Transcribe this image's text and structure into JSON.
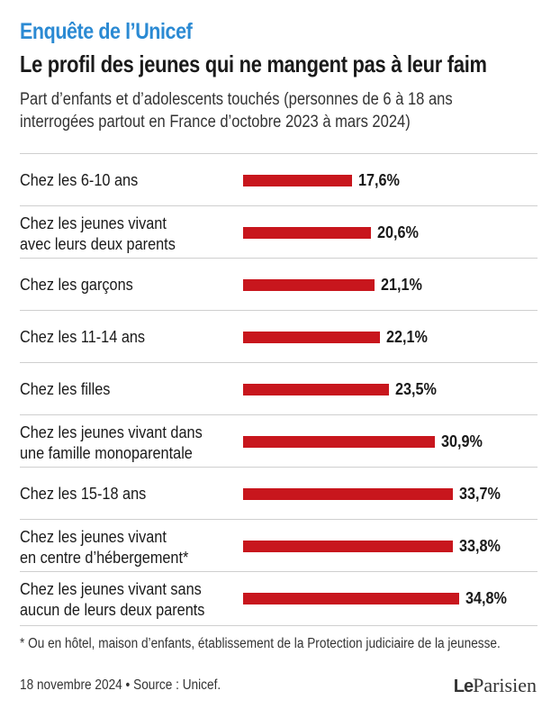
{
  "header": {
    "kicker": "Enquête de l’Unicef",
    "title": "Le profil des jeunes qui ne mangent pas à leur faim",
    "subtitle": "Part d’enfants et d’adolescents touchés (personnes de 6 à 18 ans interrogées partout en France d’octobre 2023 à mars 2024)"
  },
  "colors": {
    "kicker": "#2b8ad3",
    "bar": "#c8161d",
    "rule": "#cfcfcf"
  },
  "chart_data": {
    "type": "bar",
    "orientation": "horizontal",
    "categories": [
      "Chez les 6-10 ans",
      "Chez les jeunes vivant\navec leurs deux parents",
      "Chez les garçons",
      "Chez les 11-14 ans",
      "Chez les filles",
      "Chez les jeunes vivant dans\nune famille monoparentale",
      "Chez les 15-18 ans",
      "Chez les jeunes vivant\nen centre d’hébergement*",
      "Chez les jeunes vivant sans\naucun de leurs deux parents"
    ],
    "values": [
      17.6,
      20.6,
      21.1,
      22.1,
      23.5,
      30.9,
      33.7,
      33.8,
      34.8
    ],
    "value_labels": [
      "17,6%",
      "20,6%",
      "21,1%",
      "22,1%",
      "23,5%",
      "30,9%",
      "33,7%",
      "33,8%",
      "34,8%"
    ],
    "unit": "%",
    "grid": false,
    "legend": "none"
  },
  "footer": {
    "footnote": "* Ou en hôtel, maison d’enfants, établissement de la Protection judiciaire de la jeunesse.",
    "source": "18 novembre 2024 • Source : Unicef.",
    "logo_le": "Le",
    "logo_name": "Parisien"
  }
}
